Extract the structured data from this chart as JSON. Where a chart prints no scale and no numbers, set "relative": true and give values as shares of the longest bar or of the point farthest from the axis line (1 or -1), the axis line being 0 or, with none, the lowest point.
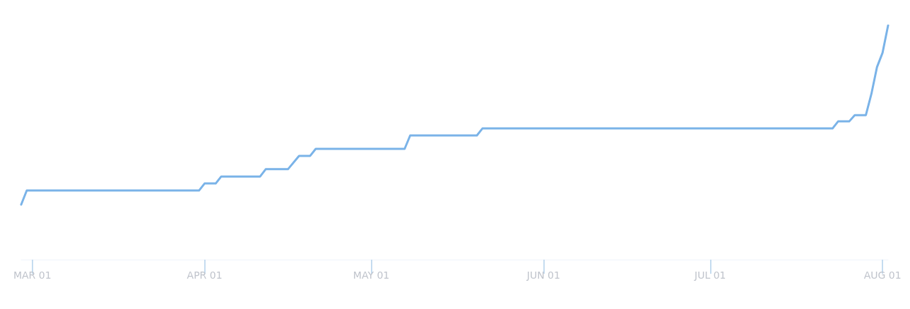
{
  "chart_data": {
    "type": "line",
    "relative": true,
    "color": "#7ab3e8",
    "marker": "none",
    "line_style": "solid",
    "xlim": [
      "--02-27",
      "--08-02"
    ],
    "x": [
      "--02-27",
      "--02-28",
      "--03-31",
      "--04-01",
      "--04-03",
      "--04-04",
      "--04-11",
      "--04-12",
      "--04-16",
      "--04-18",
      "--04-20",
      "--04-21",
      "--05-07",
      "--05-08",
      "--05-20",
      "--05-21",
      "--07-23",
      "--07-24",
      "--07-26",
      "--07-27",
      "--07-29",
      "--07-30",
      "--07-31",
      "--08-01",
      "--08-02"
    ],
    "values": [
      0.235,
      0.295,
      0.295,
      0.325,
      0.325,
      0.355,
      0.355,
      0.386,
      0.386,
      0.443,
      0.443,
      0.473,
      0.473,
      0.53,
      0.53,
      0.56,
      0.56,
      0.59,
      0.59,
      0.617,
      0.617,
      0.708,
      0.822,
      0.883,
      1
    ],
    "xticks": [
      {
        "value": "--03-01",
        "label": "MAR 01"
      },
      {
        "value": "--04-01",
        "label": "APR 01"
      },
      {
        "value": "--05-01",
        "label": "MAY 01"
      },
      {
        "value": "--06-01",
        "label": "JUN 01"
      },
      {
        "value": "--07-01",
        "label": "JUL 01"
      },
      {
        "value": "--08-01",
        "label": "AUG 01"
      }
    ]
  }
}
